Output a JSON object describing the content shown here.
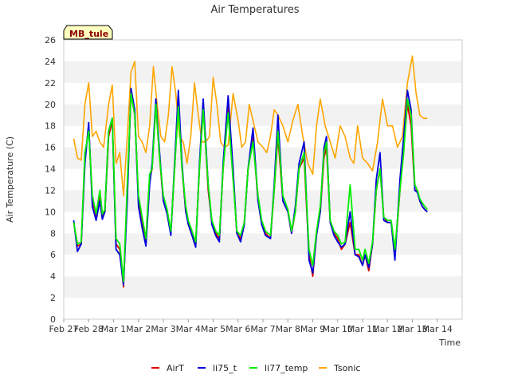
{
  "chart_data": {
    "type": "line",
    "title": "Air Temperatures",
    "xlabel": "Time",
    "ylabel": "Air Temperature (C)",
    "badge": "MB_tule",
    "ylim": [
      0,
      26
    ],
    "yticks": [
      0,
      2,
      4,
      6,
      8,
      10,
      12,
      14,
      16,
      18,
      20,
      22,
      24,
      26
    ],
    "xlim": [
      0,
      16
    ],
    "xticks": [
      {
        "x": 0,
        "label": "Feb 27"
      },
      {
        "x": 1,
        "label": "Feb 28"
      },
      {
        "x": 2,
        "label": "Mar 1"
      },
      {
        "x": 3,
        "label": "Mar 2"
      },
      {
        "x": 4,
        "label": "Mar 3"
      },
      {
        "x": 5,
        "label": "Mar 4"
      },
      {
        "x": 6,
        "label": "Mar 5"
      },
      {
        "x": 7,
        "label": "Mar 6"
      },
      {
        "x": 8,
        "label": "Mar 7"
      },
      {
        "x": 9,
        "label": "Mar 8"
      },
      {
        "x": 10,
        "label": "Mar 9"
      },
      {
        "x": 11,
        "label": "Mar 10"
      },
      {
        "x": 12,
        "label": "Mar 11"
      },
      {
        "x": 13,
        "label": "Mar 12"
      },
      {
        "x": 14,
        "label": "Mar 13"
      },
      {
        "x": 15,
        "label": "Mar 14"
      }
    ],
    "grid": "horizontal bands",
    "legend_position": "bottom",
    "series": [
      {
        "name": "AirT",
        "color": "#dd0000",
        "x": [
          0.4,
          0.55,
          0.7,
          0.85,
          1.0,
          1.15,
          1.3,
          1.45,
          1.55,
          1.65,
          1.8,
          1.95,
          2.1,
          2.25,
          2.4,
          2.55,
          2.7,
          2.85,
          3.0,
          3.15,
          3.3,
          3.45,
          3.55,
          3.7,
          3.85,
          4.0,
          4.15,
          4.3,
          4.45,
          4.6,
          4.75,
          4.9,
          5.0,
          5.15,
          5.3,
          5.45,
          5.6,
          5.8,
          5.95,
          6.1,
          6.25,
          6.4,
          6.6,
          6.8,
          6.95,
          7.1,
          7.25,
          7.4,
          7.6,
          7.8,
          7.95,
          8.1,
          8.3,
          8.45,
          8.6,
          8.8,
          9.0,
          9.15,
          9.3,
          9.45,
          9.65,
          9.85,
          10.0,
          10.15,
          10.3,
          10.45,
          10.55,
          10.7,
          10.85,
          11.0,
          11.15,
          11.3,
          11.5,
          11.7,
          11.85,
          12.0,
          12.1,
          12.25,
          12.4,
          12.55,
          12.7,
          12.85,
          13.0,
          13.15,
          13.3,
          13.5,
          13.65,
          13.8,
          13.95,
          14.1,
          14.2,
          14.3,
          14.4,
          14.5,
          14.6
        ],
        "y": [
          9.0,
          6.8,
          7.0,
          15.0,
          18.0,
          11.0,
          9.5,
          11.5,
          9.5,
          10.0,
          17.0,
          18.5,
          7.0,
          6.5,
          3.0,
          12.0,
          21.0,
          19.0,
          11.0,
          9.0,
          7.0,
          13.0,
          14.0,
          20.0,
          15.0,
          11.0,
          10.0,
          8.0,
          14.0,
          20.5,
          14.0,
          10.0,
          9.0,
          8.0,
          7.0,
          14.0,
          20.0,
          12.0,
          9.0,
          8.0,
          7.5,
          14.0,
          20.0,
          13.5,
          8.0,
          7.5,
          9.0,
          14.0,
          17.0,
          11.0,
          9.0,
          8.0,
          7.5,
          12.0,
          17.0,
          11.0,
          10.0,
          8.0,
          10.0,
          14.0,
          15.0,
          6.0,
          4.0,
          8.0,
          10.0,
          15.0,
          16.0,
          9.0,
          8.0,
          7.5,
          6.5,
          7.0,
          9.0,
          6.0,
          6.0,
          5.0,
          6.0,
          4.5,
          7.0,
          12.0,
          14.0,
          9.5,
          9.0,
          9.0,
          6.0,
          12.0,
          16.0,
          20.0,
          18.0,
          12.0,
          12.0,
          11.0,
          10.5,
          10.2,
          10.0
        ]
      },
      {
        "name": "li75_t",
        "color": "#0000dd",
        "x": [
          0.4,
          0.55,
          0.7,
          0.85,
          1.0,
          1.15,
          1.3,
          1.45,
          1.55,
          1.65,
          1.8,
          1.95,
          2.1,
          2.25,
          2.4,
          2.55,
          2.7,
          2.85,
          3.0,
          3.15,
          3.3,
          3.45,
          3.55,
          3.7,
          3.85,
          4.0,
          4.15,
          4.3,
          4.45,
          4.6,
          4.75,
          4.9,
          5.0,
          5.15,
          5.3,
          5.45,
          5.6,
          5.8,
          5.95,
          6.1,
          6.25,
          6.4,
          6.6,
          6.8,
          6.95,
          7.1,
          7.25,
          7.4,
          7.6,
          7.8,
          7.95,
          8.1,
          8.3,
          8.45,
          8.6,
          8.8,
          9.0,
          9.15,
          9.3,
          9.45,
          9.65,
          9.85,
          10.0,
          10.15,
          10.3,
          10.45,
          10.55,
          10.7,
          10.85,
          11.0,
          11.15,
          11.3,
          11.5,
          11.7,
          11.85,
          12.0,
          12.1,
          12.25,
          12.4,
          12.55,
          12.7,
          12.85,
          13.0,
          13.15,
          13.3,
          13.5,
          13.65,
          13.8,
          13.95,
          14.1,
          14.2,
          14.3,
          14.4,
          14.5,
          14.6
        ],
        "y": [
          9.2,
          6.3,
          7.0,
          14.5,
          18.3,
          10.5,
          9.2,
          11.0,
          9.3,
          10.0,
          17.5,
          18.7,
          6.5,
          6.0,
          3.2,
          11.0,
          21.5,
          19.5,
          10.5,
          8.5,
          6.8,
          12.5,
          14.5,
          20.5,
          15.5,
          11.0,
          9.8,
          7.8,
          14.5,
          21.3,
          14.5,
          10.0,
          8.8,
          7.8,
          6.7,
          14.5,
          20.5,
          12.5,
          8.8,
          7.8,
          7.2,
          14.5,
          20.8,
          14.0,
          8.0,
          7.2,
          8.8,
          14.0,
          17.8,
          11.0,
          8.8,
          7.8,
          7.5,
          12.5,
          19.0,
          11.0,
          10.0,
          8.0,
          10.5,
          14.5,
          16.5,
          5.5,
          4.3,
          7.8,
          10.0,
          16.0,
          17.0,
          9.0,
          7.8,
          7.2,
          6.7,
          7.0,
          10.0,
          6.0,
          5.8,
          5.0,
          6.0,
          4.8,
          7.0,
          13.0,
          15.5,
          9.2,
          9.0,
          9.0,
          5.5,
          13.0,
          17.0,
          21.3,
          19.5,
          12.0,
          11.8,
          11.0,
          10.5,
          10.2,
          10.0
        ]
      },
      {
        "name": "li77_temp",
        "color": "#00ee00",
        "x": [
          0.4,
          0.55,
          0.7,
          0.85,
          1.0,
          1.15,
          1.3,
          1.45,
          1.55,
          1.65,
          1.8,
          1.95,
          2.1,
          2.25,
          2.4,
          2.55,
          2.7,
          2.85,
          3.0,
          3.15,
          3.3,
          3.45,
          3.55,
          3.7,
          3.85,
          4.0,
          4.15,
          4.3,
          4.45,
          4.6,
          4.75,
          4.9,
          5.0,
          5.15,
          5.3,
          5.45,
          5.6,
          5.8,
          5.95,
          6.1,
          6.25,
          6.4,
          6.6,
          6.8,
          6.95,
          7.1,
          7.25,
          7.4,
          7.6,
          7.8,
          7.95,
          8.1,
          8.3,
          8.45,
          8.6,
          8.8,
          9.0,
          9.15,
          9.3,
          9.45,
          9.65,
          9.85,
          10.0,
          10.15,
          10.3,
          10.45,
          10.55,
          10.7,
          10.85,
          11.0,
          11.15,
          11.3,
          11.5,
          11.7,
          11.85,
          12.0,
          12.1,
          12.25,
          12.4,
          12.55,
          12.7,
          12.85,
          13.0,
          13.15,
          13.3,
          13.5,
          13.65,
          13.8,
          13.95,
          14.1,
          14.2,
          14.3,
          14.4,
          14.5,
          14.6
        ],
        "y": [
          9.0,
          7.0,
          7.2,
          15.5,
          17.5,
          11.5,
          9.8,
          12.0,
          9.8,
          10.2,
          17.5,
          18.7,
          7.5,
          7.0,
          3.5,
          12.5,
          21.0,
          19.0,
          11.5,
          9.5,
          7.5,
          13.5,
          14.0,
          20.0,
          15.0,
          11.5,
          10.2,
          8.2,
          14.0,
          19.8,
          14.0,
          10.5,
          9.2,
          8.2,
          7.2,
          14.0,
          19.5,
          12.5,
          9.2,
          8.2,
          7.8,
          14.0,
          19.2,
          13.0,
          8.2,
          7.8,
          9.0,
          14.0,
          16.5,
          11.5,
          9.2,
          8.2,
          7.8,
          12.0,
          17.5,
          11.5,
          10.2,
          8.2,
          10.0,
          14.0,
          15.5,
          6.5,
          5.0,
          8.2,
          10.5,
          15.5,
          16.5,
          9.2,
          8.2,
          7.8,
          7.0,
          7.2,
          12.5,
          6.5,
          6.5,
          5.5,
          6.5,
          5.2,
          7.2,
          12.0,
          14.0,
          9.5,
          9.2,
          9.2,
          6.5,
          12.0,
          15.5,
          20.5,
          19.0,
          12.5,
          12.0,
          11.2,
          10.8,
          10.5,
          10.2
        ]
      },
      {
        "name": "Tsonic",
        "color": "#ffa500",
        "x": [
          0.4,
          0.55,
          0.7,
          0.85,
          1.0,
          1.15,
          1.3,
          1.45,
          1.6,
          1.8,
          1.95,
          2.1,
          2.25,
          2.4,
          2.55,
          2.7,
          2.85,
          3.0,
          3.15,
          3.3,
          3.45,
          3.6,
          3.75,
          3.9,
          4.05,
          4.2,
          4.35,
          4.5,
          4.65,
          4.8,
          4.95,
          5.1,
          5.25,
          5.4,
          5.55,
          5.7,
          5.85,
          6.0,
          6.15,
          6.3,
          6.45,
          6.6,
          6.8,
          7.0,
          7.15,
          7.3,
          7.45,
          7.6,
          7.8,
          8.0,
          8.15,
          8.3,
          8.45,
          8.6,
          8.8,
          9.0,
          9.2,
          9.4,
          9.6,
          9.8,
          10.0,
          10.15,
          10.3,
          10.5,
          10.7,
          10.9,
          11.1,
          11.3,
          11.5,
          11.65,
          11.8,
          12.0,
          12.2,
          12.4,
          12.6,
          12.8,
          13.0,
          13.2,
          13.4,
          13.6,
          13.8,
          14.0,
          14.15,
          14.3,
          14.45,
          14.6
        ],
        "y": [
          16.8,
          15.0,
          14.8,
          20.0,
          22.0,
          17.0,
          17.5,
          16.5,
          16.0,
          20.0,
          21.8,
          14.5,
          15.5,
          11.5,
          17.0,
          23.0,
          24.0,
          17.0,
          16.5,
          15.5,
          18.0,
          23.5,
          20.0,
          17.0,
          16.5,
          19.0,
          23.5,
          21.0,
          17.0,
          16.5,
          14.5,
          17.0,
          22.0,
          19.0,
          16.5,
          16.5,
          17.0,
          22.5,
          20.0,
          16.5,
          16.0,
          16.2,
          21.0,
          18.5,
          16.0,
          16.5,
          20.0,
          18.5,
          16.5,
          16.0,
          15.5,
          17.0,
          19.5,
          19.0,
          18.0,
          16.5,
          18.5,
          20.0,
          17.0,
          14.5,
          13.5,
          18.0,
          20.5,
          18.0,
          16.5,
          15.0,
          18.0,
          17.0,
          15.0,
          14.5,
          18.0,
          15.0,
          14.5,
          13.8,
          16.5,
          20.5,
          18.0,
          18.0,
          16.0,
          17.0,
          22.0,
          24.5,
          21.0,
          19.0,
          18.7,
          18.7
        ]
      }
    ]
  }
}
